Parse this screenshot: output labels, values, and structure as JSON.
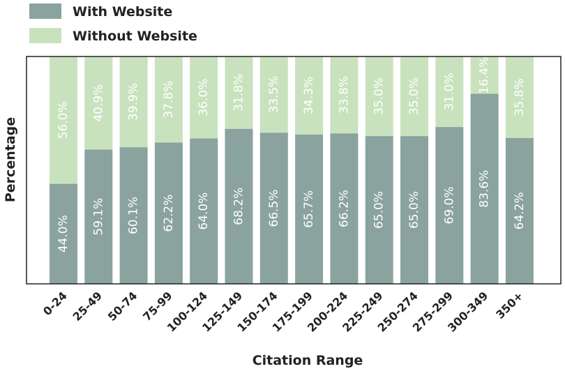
{
  "chart_data": {
    "type": "bar",
    "stacked": true,
    "categories": [
      "0-24",
      "25-49",
      "50-74",
      "75-99",
      "100-124",
      "125-149",
      "150-174",
      "175-199",
      "200-224",
      "225-249",
      "250-274",
      "275-299",
      "300-349",
      "350+"
    ],
    "series": [
      {
        "name": "With Website",
        "color": "#8aa39f",
        "values": [
          44.0,
          59.1,
          60.1,
          62.2,
          64.0,
          68.2,
          66.5,
          65.7,
          66.2,
          65.0,
          65.0,
          69.0,
          83.6,
          64.2
        ],
        "labels": [
          "44.0%",
          "59.1%",
          "60.1%",
          "62.2%",
          "64.0%",
          "68.2%",
          "66.5%",
          "65.7%",
          "66.2%",
          "65.0%",
          "65.0%",
          "69.0%",
          "83.6%",
          "64.2%"
        ]
      },
      {
        "name": "Without Website",
        "color": "#c9e2be",
        "values": [
          56.0,
          40.9,
          39.9,
          37.8,
          36.0,
          31.8,
          33.5,
          34.3,
          33.8,
          35.0,
          35.0,
          31.0,
          16.4,
          35.8
        ],
        "labels": [
          "56.0%",
          "40.9%",
          "39.9%",
          "37.8%",
          "36.0%",
          "31.8%",
          "33.5%",
          "34.3%",
          "33.8%",
          "35.0%",
          "35.0%",
          "31.0%",
          "16.4%",
          "35.8%"
        ]
      }
    ],
    "xlabel": "Citation Range",
    "ylabel": "Percentage",
    "ylim": [
      0,
      100
    ],
    "grid": false,
    "legend": "top-left"
  }
}
